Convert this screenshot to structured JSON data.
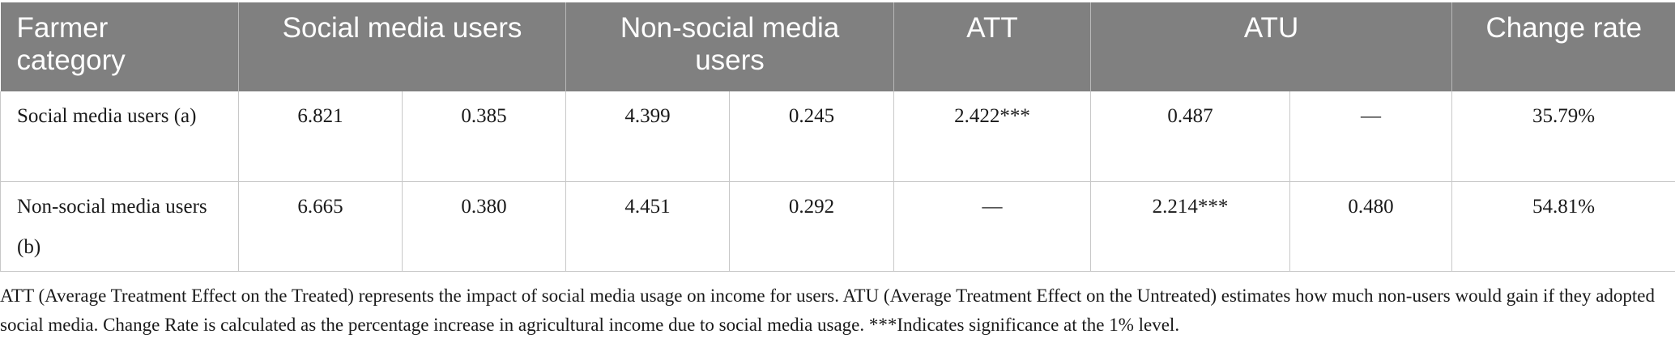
{
  "table": {
    "headers": [
      "Farmer category",
      "Social media users",
      "Non-social media users",
      "ATT",
      "ATU",
      "Change rate"
    ],
    "rows": [
      {
        "category": "Social media users (a)",
        "cells": [
          "6.821",
          "0.385",
          "4.399",
          "0.245",
          "2.422***",
          "0.487",
          "—",
          "35.79%"
        ]
      },
      {
        "category": "Non-social media users (b)",
        "cells": [
          "6.665",
          "0.380",
          "4.451",
          "0.292",
          "—",
          "2.214***",
          "0.480",
          "54.81%"
        ]
      }
    ]
  },
  "footnote": "ATT (Average Treatment Effect on the Treated) represents the impact of social media usage on income for users. ATU (Average Treatment Effect on the Untreated) estimates how much non-users would gain if they adopted social media. Change Rate is calculated as the percentage increase in agricultural income due to social media usage. ***Indicates significance at the 1% level."
}
